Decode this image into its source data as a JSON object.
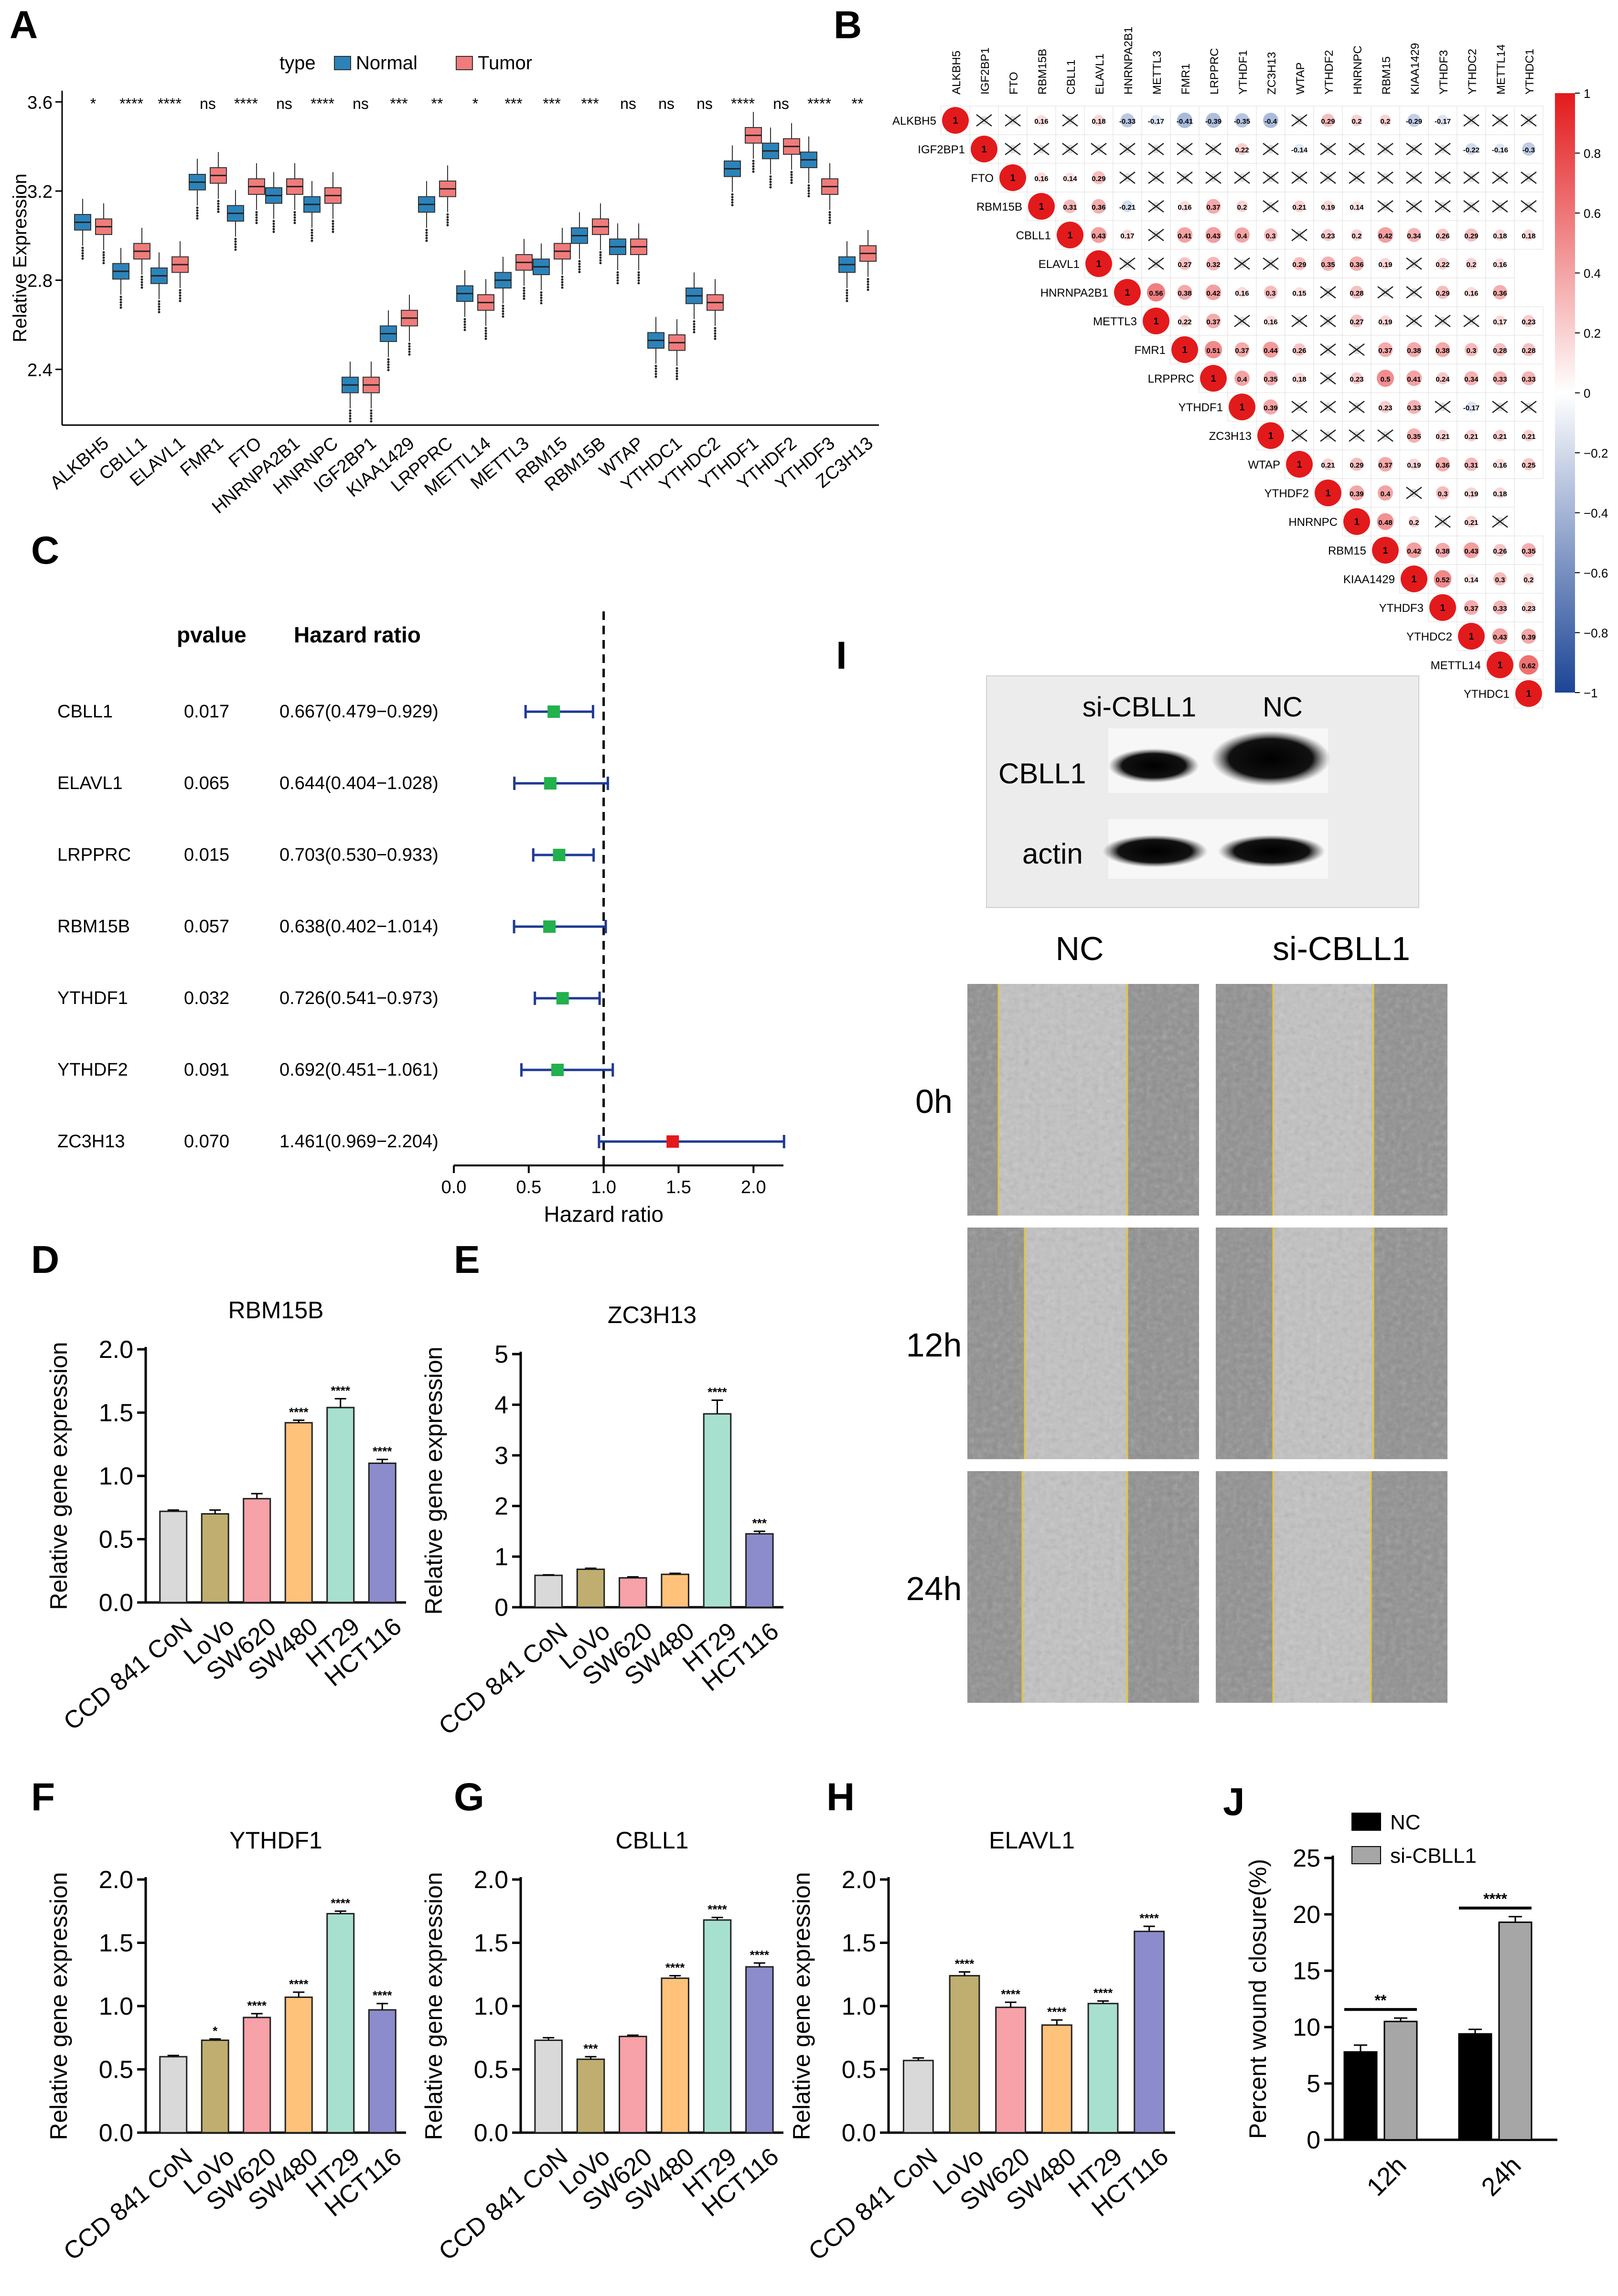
{
  "panel_letters": [
    "A",
    "B",
    "C",
    "D",
    "E",
    "F",
    "G",
    "H",
    "I",
    "J"
  ],
  "chart_data": [
    {
      "panel": "A",
      "type": "box",
      "ylabel": "Relative Expression",
      "yticks": [
        2.4,
        2.8,
        3.2,
        3.6
      ],
      "ylim": [
        2.15,
        3.65
      ],
      "legend_title": "type",
      "legend_position": "top",
      "series": [
        {
          "name": "Normal",
          "color": "#2b83ba"
        },
        {
          "name": "Tumor",
          "color": "#f07b7b"
        }
      ],
      "categories": [
        "ALKBH5",
        "CBLL1",
        "ELAVL1",
        "FMR1",
        "FTO",
        "HNRNPA2B1",
        "HNRNPC",
        "IGF2BP1",
        "KIAA1429",
        "LRPPRC",
        "METTL14",
        "METTL3",
        "RBM15",
        "RBM15B",
        "WTAP",
        "YTHDC1",
        "YTHDC2",
        "YTHDF1",
        "YTHDF2",
        "YTHDF3",
        "ZC3H13"
      ],
      "significance": [
        "*",
        "****",
        "****",
        "ns",
        "****",
        "ns",
        "****",
        "ns",
        "***",
        "**",
        "*",
        "***",
        "***",
        "***",
        "ns",
        "ns",
        "ns",
        "****",
        "ns",
        "****",
        "**"
      ],
      "medians_normal": [
        3.06,
        2.84,
        2.82,
        3.24,
        3.1,
        3.18,
        3.14,
        2.33,
        2.56,
        3.14,
        2.74,
        2.8,
        2.86,
        3.0,
        2.95,
        2.53,
        2.73,
        3.3,
        3.38,
        3.34,
        2.87
      ],
      "medians_tumor": [
        3.04,
        2.93,
        2.87,
        3.27,
        3.22,
        3.22,
        3.18,
        2.33,
        2.63,
        3.21,
        2.7,
        2.88,
        2.93,
        3.04,
        2.95,
        2.52,
        2.7,
        3.45,
        3.4,
        3.22,
        2.92
      ]
    },
    {
      "panel": "B",
      "type": "heatmap",
      "variables": [
        "ALKBH5",
        "IGF2BP1",
        "FTO",
        "RBM15B",
        "CBLL1",
        "ELAVL1",
        "HNRNPA2B1",
        "METTL3",
        "FMR1",
        "LRPPRC",
        "YTHDF1",
        "ZC3H13",
        "WTAP",
        "YTHDF2",
        "HNRNPC",
        "RBM15",
        "KIAA1429",
        "YTHDF3",
        "YTHDC2",
        "METTL14",
        "YTHDC1"
      ],
      "colorbar_ticks": [
        "1",
        "0.8",
        "0.6",
        "0.4",
        "0.2",
        "0",
        "−0.2",
        "−0.4",
        "−0.6",
        "−0.8",
        "−1"
      ],
      "colorbar_range": [
        -1,
        1
      ],
      "rows": [
        {
          "label": "ALKBH5",
          "values": [
            "1",
            "",
            "",
            "0.16",
            "",
            "0.18",
            "-0.33",
            "-0.17",
            "-0.41",
            "-0.39",
            "-0.35",
            "-0.4",
            "",
            "0.29",
            "0.2",
            "0.2",
            "-0.29",
            "-0.17",
            "",
            "",
            ""
          ]
        },
        {
          "label": "IGF2BP1",
          "values": [
            "1",
            "",
            "",
            "",
            "",
            "",
            "",
            "",
            "",
            "0.22",
            "",
            "-0.14",
            "",
            "",
            "",
            "",
            "",
            "-0.22",
            "-0.16",
            "-0.3"
          ]
        },
        {
          "label": "FTO",
          "values": [
            "1",
            "0.16",
            "0.14",
            "0.29",
            "",
            "",
            "",
            "",
            "",
            "",
            "",
            "",
            "",
            "",
            "",
            "",
            "",
            "",
            ""
          ]
        },
        {
          "label": "RBM15B",
          "values": [
            "1",
            "0.31",
            "0.36",
            "-0.21",
            "",
            "0.16",
            "0.37",
            "0.2",
            "",
            "0.21",
            "0.19",
            "0.14",
            "",
            "",
            "",
            "",
            "",
            ""
          ]
        },
        {
          "label": "CBLL1",
          "values": [
            "1",
            "0.43",
            "0.17",
            "",
            "0.41",
            "0.43",
            "0.4",
            "0.3",
            "",
            "0.23",
            "0.2",
            "0.42",
            "0.34",
            "0.26",
            "0.29",
            "0.18",
            "0.18"
          ]
        },
        {
          "label": "ELAVL1",
          "values": [
            "1",
            "",
            "",
            "0.27",
            "0.32",
            "",
            "",
            "0.29",
            "0.35",
            "0.36",
            "0.19",
            "",
            "0.22",
            "0.2",
            "0.16"
          ]
        },
        {
          "label": "HNRNPA2B1",
          "values": [
            "1",
            "0.56",
            "0.38",
            "0.42",
            "0.16",
            "0.3",
            "0.15",
            "",
            "0.28",
            "",
            "",
            "0.29",
            "0.16",
            "0.36"
          ]
        },
        {
          "label": "METTL3",
          "values": [
            "1",
            "0.22",
            "0.37",
            "",
            "0.16",
            "",
            "",
            "0.27",
            "0.19",
            "",
            "",
            "",
            "0.17",
            "0.23"
          ]
        },
        {
          "label": "FMR1",
          "values": [
            "1",
            "0.51",
            "0.37",
            "0.44",
            "0.26",
            "",
            "",
            "0.37",
            "0.38",
            "0.38",
            "0.3",
            "0.28",
            "0.28"
          ]
        },
        {
          "label": "LRPPRC",
          "values": [
            "1",
            "0.4",
            "0.35",
            "0.18",
            "",
            "0.23",
            "0.5",
            "0.41",
            "0.24",
            "0.34",
            "0.33",
            "0.33"
          ]
        },
        {
          "label": "YTHDF1",
          "values": [
            "1",
            "0.39",
            "",
            "",
            "",
            "0.23",
            "0.33",
            "",
            "-0.17",
            "",
            ""
          ]
        },
        {
          "label": "ZC3H13",
          "values": [
            "1",
            "",
            "",
            "",
            "",
            "0.35",
            "0.21",
            "0.21",
            "0.21",
            "0.21"
          ]
        },
        {
          "label": "WTAP",
          "values": [
            "1",
            "0.21",
            "0.29",
            "0.37",
            "0.19",
            "0.36",
            "0.31",
            "0.16",
            "0.25"
          ]
        },
        {
          "label": "YTHDF2",
          "values": [
            "1",
            "0.39",
            "0.4",
            "",
            "0.3",
            "0.19",
            "0.18"
          ]
        },
        {
          "label": "HNRNPC",
          "values": [
            "1",
            "0.48",
            "0.2",
            "",
            "0.21",
            ""
          ]
        },
        {
          "label": "RBM15",
          "values": [
            "1",
            "0.42",
            "0.38",
            "0.43",
            "0.26",
            "0.35"
          ]
        },
        {
          "label": "KIAA1429",
          "values": [
            "1",
            "0.52",
            "0.14",
            "0.3",
            "0.2"
          ]
        },
        {
          "label": "YTHDF3",
          "values": [
            "1",
            "0.37",
            "0.33",
            "0.23"
          ]
        },
        {
          "label": "YTHDC2",
          "values": [
            "1",
            "0.43",
            "0.39"
          ]
        },
        {
          "label": "METTL14",
          "values": [
            "1",
            "0.62"
          ]
        },
        {
          "label": "YTHDC1",
          "values": [
            "1"
          ]
        }
      ]
    },
    {
      "panel": "C",
      "type": "forest",
      "col_headers": {
        "pvalue": "pvalue",
        "hr": "Hazard ratio"
      },
      "xlabel": "Hazard ratio",
      "xticks": [
        "0.0",
        "0.5",
        "1.0",
        "1.5",
        "2.0"
      ],
      "xlim": [
        0.0,
        2.2
      ],
      "rows": [
        {
          "gene": "CBLL1",
          "pvalue": "0.017",
          "hr_text": "0.667(0.479−0.929)",
          "hr": 0.667,
          "lo": 0.479,
          "hi": 0.929,
          "color": "#22b14c"
        },
        {
          "gene": "ELAVL1",
          "pvalue": "0.065",
          "hr_text": "0.644(0.404−1.028)",
          "hr": 0.644,
          "lo": 0.404,
          "hi": 1.028,
          "color": "#22b14c"
        },
        {
          "gene": "LRPPRC",
          "pvalue": "0.015",
          "hr_text": "0.703(0.530−0.933)",
          "hr": 0.703,
          "lo": 0.53,
          "hi": 0.933,
          "color": "#22b14c"
        },
        {
          "gene": "RBM15B",
          "pvalue": "0.057",
          "hr_text": "0.638(0.402−1.014)",
          "hr": 0.638,
          "lo": 0.402,
          "hi": 1.014,
          "color": "#22b14c"
        },
        {
          "gene": "YTHDF1",
          "pvalue": "0.032",
          "hr_text": "0.726(0.541−0.973)",
          "hr": 0.726,
          "lo": 0.541,
          "hi": 0.973,
          "color": "#22b14c"
        },
        {
          "gene": "YTHDF2",
          "pvalue": "0.091",
          "hr_text": "0.692(0.451−1.061)",
          "hr": 0.692,
          "lo": 0.451,
          "hi": 1.061,
          "color": "#22b14c"
        },
        {
          "gene": "ZC3H13",
          "pvalue": "0.070",
          "hr_text": "1.461(0.969−2.204)",
          "hr": 1.461,
          "lo": 0.969,
          "hi": 2.204,
          "color": "#e31a1c"
        }
      ]
    },
    {
      "panel": "D",
      "type": "bar",
      "title": "RBM15B",
      "ylabel": "Relative gene expression",
      "categories": [
        "CCD 841 CoN",
        "LoVo",
        "SW620",
        "SW480",
        "HT29",
        "HCT116"
      ],
      "values": [
        0.72,
        0.7,
        0.82,
        1.42,
        1.54,
        1.1
      ],
      "errors": [
        0.01,
        0.03,
        0.04,
        0.02,
        0.07,
        0.03
      ],
      "significance": [
        "",
        "",
        "",
        "****",
        "****",
        "****"
      ],
      "ylim": [
        0,
        2.0
      ],
      "yticks": [
        "0.0",
        "0.5",
        "1.0",
        "1.5",
        "2.0"
      ]
    },
    {
      "panel": "E",
      "type": "bar",
      "title": "ZC3H13",
      "ylabel": "Relative gene expression",
      "categories": [
        "CCD 841 CoN",
        "LoVo",
        "SW620",
        "SW480",
        "HT29",
        "HCT116"
      ],
      "values": [
        0.63,
        0.75,
        0.58,
        0.65,
        3.82,
        1.45
      ],
      "errors": [
        0.01,
        0.02,
        0.02,
        0.02,
        0.27,
        0.05
      ],
      "significance": [
        "",
        "",
        "",
        "",
        "****",
        "***"
      ],
      "ylim": [
        0,
        5
      ],
      "yticks": [
        "0",
        "1",
        "2",
        "3",
        "4",
        "5"
      ]
    },
    {
      "panel": "F",
      "type": "bar",
      "title": "YTHDF1",
      "ylabel": "Relative gene expression",
      "categories": [
        "CCD 841 CoN",
        "LoVo",
        "SW620",
        "SW480",
        "HT29",
        "HCT116"
      ],
      "values": [
        0.6,
        0.73,
        0.91,
        1.07,
        1.73,
        0.97
      ],
      "errors": [
        0.01,
        0.01,
        0.03,
        0.04,
        0.02,
        0.05
      ],
      "significance": [
        "",
        "*",
        "****",
        "****",
        "****",
        "****"
      ],
      "ylim": [
        0,
        2.0
      ],
      "yticks": [
        "0.0",
        "0.5",
        "1.0",
        "1.5",
        "2.0"
      ]
    },
    {
      "panel": "G",
      "type": "bar",
      "title": "CBLL1",
      "ylabel": "Relative gene expression",
      "categories": [
        "CCD 841 CoN",
        "LoVo",
        "SW620",
        "SW480",
        "HT29",
        "HCT116"
      ],
      "values": [
        0.73,
        0.58,
        0.76,
        1.22,
        1.68,
        1.31
      ],
      "errors": [
        0.02,
        0.02,
        0.01,
        0.02,
        0.02,
        0.03
      ],
      "significance": [
        "",
        "***",
        "",
        "****",
        "****",
        "****"
      ],
      "ylim": [
        0,
        2.0
      ],
      "yticks": [
        "0.0",
        "0.5",
        "1.0",
        "1.5",
        "2.0"
      ]
    },
    {
      "panel": "H",
      "type": "bar",
      "title": "ELAVL1",
      "ylabel": "Relative gene expression",
      "categories": [
        "CCD 841 CoN",
        "LoVo",
        "SW620",
        "SW480",
        "HT29",
        "HCT116"
      ],
      "values": [
        0.57,
        1.24,
        0.99,
        0.85,
        1.02,
        1.59
      ],
      "errors": [
        0.02,
        0.03,
        0.04,
        0.04,
        0.02,
        0.04
      ],
      "significance": [
        "",
        "****",
        "****",
        "****",
        "****",
        "****"
      ],
      "ylim": [
        0,
        2.0
      ],
      "yticks": [
        "0.0",
        "0.5",
        "1.0",
        "1.5",
        "2.0"
      ]
    },
    {
      "panel": "J",
      "type": "bar",
      "ylabel": "Percent wound closure(%)",
      "categories": [
        "12h",
        "24h"
      ],
      "series": [
        {
          "name": "NC",
          "color": "#000000",
          "values": [
            7.8,
            9.4
          ],
          "errors": [
            0.6,
            0.4
          ]
        },
        {
          "name": "si-CBLL1",
          "color": "#a6a6a6",
          "values": [
            10.5,
            19.3
          ],
          "errors": [
            0.3,
            0.5
          ]
        }
      ],
      "significance": [
        "**",
        "****"
      ],
      "legend_position": "top-left",
      "ylim": [
        0,
        25
      ],
      "yticks": [
        "0",
        "5",
        "10",
        "15",
        "20",
        "25"
      ]
    }
  ],
  "blot": {
    "lane_labels": [
      "si-CBLL1",
      "NC"
    ],
    "row_labels": [
      "CBLL1",
      "actin"
    ]
  },
  "wound": {
    "col_labels": [
      "NC",
      "si-CBLL1"
    ],
    "row_labels": [
      "0h",
      "12h",
      "24h"
    ]
  },
  "colors": {
    "bar_colors": [
      "#d9d9d9",
      "#bfae6f",
      "#f7a1a8",
      "#ffc27a",
      "#a8e0d0",
      "#8c8ccc"
    ],
    "heat_pos": "#e31a1c",
    "heat_neg": "#2c56a6"
  }
}
